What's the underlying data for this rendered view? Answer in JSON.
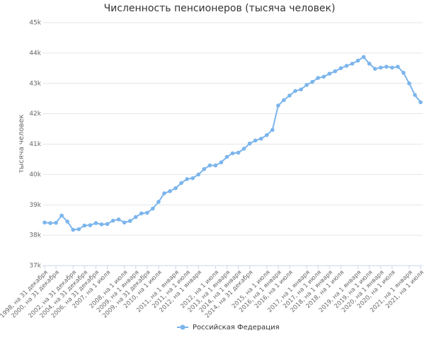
{
  "chart_data": {
    "type": "line",
    "title": "Численность пенсионеров (тысяча человек)",
    "y_label": "тысяча человек",
    "categories": [
      "1998, на 31 декабря",
      null,
      "2000, на 31 декабря",
      null,
      null,
      "2002, на 31 декабря",
      null,
      "2004, на 31 декабря",
      null,
      "2006, на 31 декабря",
      null,
      "2007, на 1 июля",
      null,
      null,
      "2008, на 1 июля",
      null,
      "2009, на 1 января",
      null,
      "2009, на 31 декабря",
      null,
      "2010, на 1 июля",
      null,
      null,
      "2011, на 1 января",
      null,
      "2011, на 1 июля",
      null,
      "2012, на 1 января",
      null,
      null,
      "2012, на 1 июля",
      null,
      "2013, на 1 января",
      null,
      "2014, на 1 января",
      null,
      "2014, на 31 декабря",
      null,
      null,
      "2015, на 1 июля",
      null,
      "2016, на 1 января",
      null,
      "2016, на 1 июля",
      null,
      null,
      "2017, на 1 января",
      null,
      "2017, на 1 июля",
      null,
      "2018, на 1 января",
      null,
      "2018, на 1 июля",
      null,
      null,
      "2019, на 1 января",
      null,
      "2019, на 1 июля",
      null,
      "2020, на 1 января",
      null,
      "2020, на 1 июля",
      null,
      null,
      "2021, на 1 января",
      null,
      "2021, на 1 июля"
    ],
    "series": [
      {
        "name": "Российская Федерация",
        "color": "#7cb5ec",
        "values": [
          38.42,
          38.4,
          38.41,
          38.65,
          38.45,
          38.18,
          38.2,
          38.32,
          38.33,
          38.4,
          38.36,
          38.37,
          38.48,
          38.52,
          38.42,
          38.47,
          38.6,
          38.72,
          38.74,
          38.88,
          39.1,
          39.38,
          39.45,
          39.55,
          39.72,
          39.85,
          39.88,
          40.0,
          40.18,
          40.3,
          40.3,
          40.4,
          40.58,
          40.7,
          40.72,
          40.85,
          41.02,
          41.12,
          41.18,
          41.3,
          41.47,
          42.27,
          42.45,
          42.6,
          42.75,
          42.8,
          42.95,
          43.05,
          43.18,
          43.22,
          43.32,
          43.4,
          43.5,
          43.58,
          43.65,
          43.75,
          43.87,
          43.65,
          43.48,
          43.52,
          43.55,
          43.52,
          43.55,
          43.35,
          43.0,
          42.62,
          42.38
        ]
      }
    ],
    "ylim": [
      37,
      45
    ],
    "yticks": [
      {
        "value": 37,
        "label": "37k"
      },
      {
        "value": 38,
        "label": "38k"
      },
      {
        "value": 39,
        "label": "39k"
      },
      {
        "value": 40,
        "label": "40k"
      },
      {
        "value": 41,
        "label": "41k"
      },
      {
        "value": 42,
        "label": "42k"
      },
      {
        "value": 43,
        "label": "43k"
      },
      {
        "value": 44,
        "label": "44k"
      },
      {
        "value": 45,
        "label": "45k"
      }
    ],
    "grid": true,
    "legend": "bottom"
  }
}
